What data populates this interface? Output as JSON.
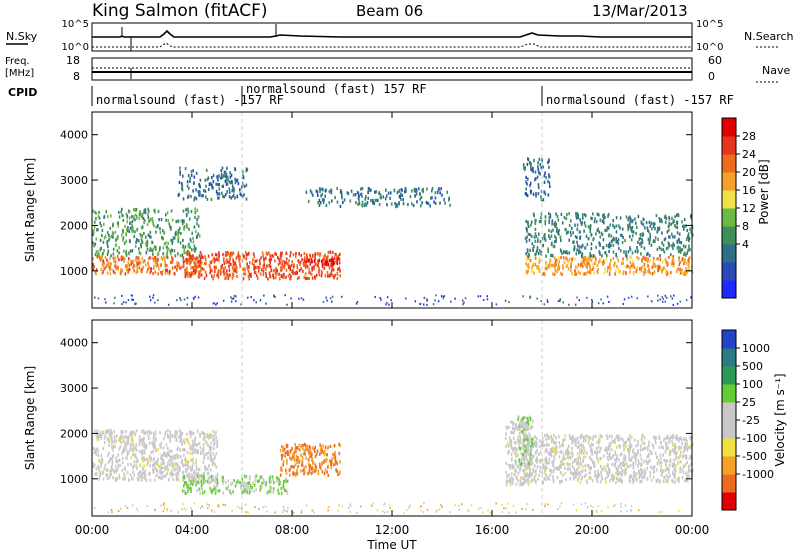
{
  "header": {
    "station": "King Salmon (fitACF)",
    "beam": "Beam 06",
    "date": "13/Mar/2013"
  },
  "strip": {
    "nsky_label": "N.Sky",
    "nsky_ticks": [
      "10^5",
      "10^0"
    ],
    "nsearch_label": "N.Search",
    "nsearch_ticks": [
      "10^5",
      "10^0"
    ],
    "freq_label_1": "Freq.",
    "freq_label_2": "[MHz]",
    "freq_ticks": [
      "18",
      "8"
    ],
    "nave_label": "Nave",
    "nave_ticks": [
      "60",
      "0"
    ],
    "cpid_label": "CPID",
    "cpid_segments": [
      {
        "label": "normalsound (fast) -157 RF",
        "start": 0,
        "end": 6
      },
      {
        "label": "normalsound (fast) 157 RF",
        "start": 6,
        "end": 18
      },
      {
        "label": "normalsound (fast) -157 RF",
        "start": 18,
        "end": 24
      }
    ]
  },
  "axes": {
    "xlabel": "Time UT",
    "ylabel": "Slant Range [km]",
    "xticks": [
      "00:00",
      "04:00",
      "08:00",
      "12:00",
      "16:00",
      "20:00",
      "00:00"
    ],
    "xlim": [
      0,
      24
    ],
    "yticks": [
      "1000",
      "2000",
      "3000",
      "4000"
    ],
    "ylim": [
      180,
      4500
    ]
  },
  "colorbars": {
    "power": {
      "label": "Power [dB]",
      "ticks": [
        "4",
        "8",
        "12",
        "16",
        "20",
        "24",
        "28"
      ],
      "colors": [
        "#1e28ff",
        "#2a4bb4",
        "#2f6f8a",
        "#3e8e5a",
        "#6cb944",
        "#f0e04a",
        "#f5a028",
        "#ee6a1c",
        "#e8341e",
        "#e00000"
      ]
    },
    "velocity": {
      "label": "Velocity [m s⁻¹]",
      "ticks": [
        "1000",
        "500",
        "100",
        "25",
        "-25",
        "-100",
        "-500",
        "-1000"
      ],
      "colors": [
        "#2244c8",
        "#2e7a84",
        "#2c9a54",
        "#66cc33",
        "#c8c8c8",
        "#c8c8c8",
        "#f0e040",
        "#f5a028",
        "#ee6a1c",
        "#e00000"
      ]
    }
  },
  "chart_data": [
    {
      "type": "heatmap",
      "title": "Power [dB]",
      "xlabel": "Time UT",
      "ylabel": "Slant Range [km]",
      "x_unit": "hours UT",
      "xlim": [
        0,
        24
      ],
      "ylim": [
        180,
        4500
      ],
      "clim": [
        0,
        30
      ],
      "features": [
        {
          "t_start": 0.0,
          "t_end": 4.3,
          "range_low": 950,
          "range_high": 1350,
          "value": 22
        },
        {
          "t_start": 0.0,
          "t_end": 4.3,
          "range_low": 1350,
          "range_high": 2400,
          "value": 11
        },
        {
          "t_start": 3.6,
          "t_end": 9.9,
          "range_low": 850,
          "range_high": 1450,
          "value": 24
        },
        {
          "t_start": 8.5,
          "t_end": 9.9,
          "range_low": 1150,
          "range_high": 1300,
          "value": 28
        },
        {
          "t_start": 3.4,
          "t_end": 6.2,
          "range_low": 2600,
          "range_high": 3300,
          "value": 7
        },
        {
          "t_start": 8.5,
          "t_end": 14.3,
          "range_low": 2450,
          "range_high": 2850,
          "value": 8
        },
        {
          "t_start": 17.3,
          "t_end": 24.0,
          "range_low": 950,
          "range_high": 1350,
          "value": 20
        },
        {
          "t_start": 17.3,
          "t_end": 24.0,
          "range_low": 1350,
          "range_high": 2300,
          "value": 9
        },
        {
          "t_start": 17.2,
          "t_end": 18.3,
          "range_low": 2600,
          "range_high": 3500,
          "value": 7
        }
      ]
    },
    {
      "type": "heatmap",
      "title": "Velocity [m s⁻¹]",
      "xlabel": "Time UT",
      "ylabel": "Slant Range [km]",
      "x_unit": "hours UT",
      "xlim": [
        0,
        24
      ],
      "ylim": [
        180,
        4500
      ],
      "clim": [
        -1000,
        1000
      ],
      "features": [
        {
          "t_start": 0.0,
          "t_end": 5.0,
          "range_low": 1000,
          "range_high": 2100,
          "value": 0
        },
        {
          "t_start": 3.6,
          "t_end": 7.8,
          "range_low": 700,
          "range_high": 1100,
          "value": 100
        },
        {
          "t_start": 7.5,
          "t_end": 9.9,
          "range_low": 1100,
          "range_high": 1800,
          "value": -500
        },
        {
          "t_start": 16.5,
          "t_end": 17.5,
          "range_low": 900,
          "range_high": 2300,
          "value": 0
        },
        {
          "t_start": 17.2,
          "t_end": 24.0,
          "range_low": 950,
          "range_high": 2000,
          "value": 0
        },
        {
          "t_start": 17.0,
          "t_end": 17.6,
          "range_low": 1200,
          "range_high": 2400,
          "value": 100
        }
      ]
    }
  ]
}
